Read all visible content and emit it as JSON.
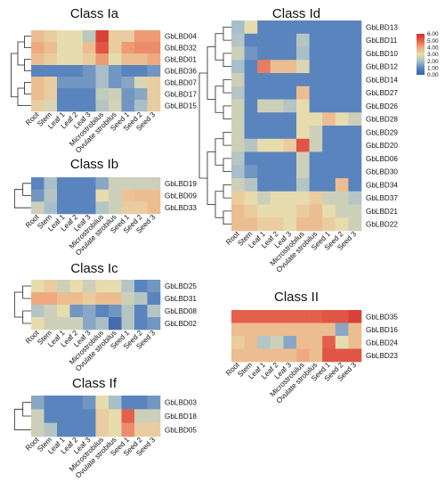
{
  "chart_data": {
    "type": "heatmap",
    "columns": [
      "Root",
      "Stem",
      "Leaf 1",
      "Leaf 2",
      "Leaf 3",
      "Microstrobilus",
      "Ovulate strobilus",
      "Seed 1",
      "Seed 2",
      "Seed 3"
    ],
    "legend": {
      "ticks": [
        "6.00",
        "5.00",
        "4.00",
        "3.00",
        "2.00",
        "1.00",
        "0.00"
      ],
      "min": 0,
      "max": 6,
      "colors": [
        "#3b62a8",
        "#5a84bd",
        "#a8bfc9",
        "#e6dcae",
        "#f0a97e",
        "#e4604c",
        "#d32a2a"
      ]
    },
    "panels": [
      {
        "title": "Class Ia",
        "rows": [
          "GbLBD04",
          "GbLBD32",
          "GbLBD01",
          "GbLBD36",
          "GbLBD07",
          "GbLBD17",
          "GbLBD15"
        ],
        "values": [
          [
            3.6,
            3.3,
            3.0,
            3.0,
            2.3,
            5.6,
            3.3,
            3.3,
            4.2,
            4.2
          ],
          [
            4.0,
            3.6,
            3.0,
            3.0,
            3.6,
            5.2,
            3.3,
            4.2,
            4.4,
            4.4
          ],
          [
            3.6,
            3.3,
            3.0,
            3.0,
            3.3,
            4.2,
            3.0,
            3.6,
            3.6,
            4.0
          ],
          [
            1.0,
            1.0,
            1.0,
            1.0,
            1.3,
            2.0,
            1.3,
            1.0,
            1.0,
            1.3
          ],
          [
            3.6,
            3.3,
            1.3,
            1.3,
            1.3,
            2.0,
            1.3,
            1.6,
            2.8,
            3.3
          ],
          [
            3.6,
            3.3,
            1.0,
            1.0,
            1.0,
            2.4,
            2.6,
            1.3,
            1.6,
            3.3
          ],
          [
            3.3,
            2.8,
            1.0,
            1.0,
            1.0,
            2.2,
            2.7,
            1.3,
            2.0,
            3.3
          ]
        ]
      },
      {
        "title": "Class Ib",
        "rows": [
          "GbLBD19",
          "GbLBD09",
          "GbLBD33"
        ],
        "values": [
          [
            1.0,
            2.0,
            1.0,
            1.0,
            1.0,
            1.6,
            2.6,
            2.6,
            2.6,
            2.6
          ],
          [
            1.3,
            2.2,
            1.0,
            1.0,
            1.0,
            3.0,
            2.6,
            3.5,
            3.6,
            3.6
          ],
          [
            2.6,
            2.0,
            1.0,
            1.0,
            1.0,
            2.2,
            2.6,
            3.3,
            3.3,
            3.6
          ]
        ]
      },
      {
        "title": "Class Ic",
        "rows": [
          "GbLBD25",
          "GbLBD31",
          "GbLBD08",
          "GbLBD02"
        ],
        "values": [
          [
            3.0,
            3.3,
            2.6,
            3.0,
            2.6,
            3.0,
            3.0,
            2.2,
            1.0,
            1.3
          ],
          [
            4.0,
            4.0,
            3.6,
            3.6,
            3.3,
            3.6,
            3.6,
            2.6,
            2.2,
            1.0
          ],
          [
            2.2,
            2.6,
            3.0,
            1.3,
            1.6,
            1.0,
            1.3,
            2.2,
            1.0,
            2.2
          ],
          [
            3.0,
            2.6,
            2.6,
            2.6,
            1.6,
            2.0,
            0.3,
            2.2,
            1.0,
            1.3
          ]
        ]
      },
      {
        "title": "Class If",
        "rows": [
          "GbLBD03",
          "GbLBD18",
          "GbLBD05"
        ],
        "values": [
          [
            1.6,
            1.0,
            1.0,
            1.0,
            1.3,
            3.0,
            2.0,
            1.0,
            1.0,
            1.3
          ],
          [
            2.6,
            1.0,
            1.0,
            1.0,
            1.0,
            3.3,
            3.0,
            5.0,
            2.6,
            2.6
          ],
          [
            2.6,
            2.2,
            1.0,
            1.0,
            1.0,
            3.3,
            3.0,
            4.4,
            3.3,
            3.3
          ]
        ]
      },
      {
        "title": "Class Id",
        "rows": [
          "GbLBD13",
          "GbLBD11",
          "GbLBD10",
          "GbLBD12",
          "GbLBD14",
          "GbLBD27",
          "GbLBD26",
          "GbLBD28",
          "GbLBD29",
          "GbLBD20",
          "GbLBD06",
          "GbLBD30",
          "GbLBD34",
          "GbLBD37",
          "GbLBD21",
          "GbLBD22"
        ],
        "values": [
          [
            2.0,
            3.0,
            1.0,
            1.0,
            1.0,
            1.0,
            1.0,
            1.0,
            1.0,
            1.0
          ],
          [
            2.2,
            1.0,
            1.0,
            1.0,
            1.0,
            2.2,
            1.0,
            1.0,
            1.0,
            1.0
          ],
          [
            2.6,
            1.3,
            1.0,
            1.0,
            1.0,
            2.0,
            1.0,
            1.0,
            1.0,
            1.0
          ],
          [
            2.0,
            1.0,
            4.6,
            3.6,
            3.6,
            2.8,
            1.0,
            1.0,
            1.0,
            1.0
          ],
          [
            2.6,
            1.0,
            1.0,
            1.0,
            1.0,
            1.0,
            1.0,
            1.0,
            1.0,
            1.0
          ],
          [
            2.2,
            1.0,
            1.0,
            1.0,
            1.0,
            3.6,
            1.0,
            1.0,
            1.0,
            1.0
          ],
          [
            2.6,
            1.0,
            2.6,
            2.6,
            2.2,
            3.0,
            1.0,
            1.0,
            1.0,
            1.0
          ],
          [
            2.6,
            1.0,
            1.0,
            1.0,
            1.0,
            3.0,
            3.0,
            3.6,
            3.0,
            2.6
          ],
          [
            2.6,
            1.0,
            1.0,
            1.0,
            1.0,
            3.0,
            2.6,
            1.0,
            1.0,
            1.0
          ],
          [
            2.6,
            2.2,
            3.0,
            3.0,
            3.3,
            5.2,
            2.6,
            1.0,
            1.0,
            1.0
          ],
          [
            2.2,
            1.0,
            1.0,
            1.0,
            1.0,
            2.6,
            1.0,
            1.0,
            1.0,
            1.0
          ],
          [
            2.0,
            1.3,
            1.0,
            1.0,
            1.0,
            2.6,
            1.0,
            1.0,
            1.0,
            1.0
          ],
          [
            2.6,
            2.2,
            1.0,
            1.0,
            1.0,
            2.2,
            1.0,
            1.0,
            3.6,
            1.0
          ],
          [
            3.3,
            3.0,
            2.6,
            3.0,
            3.0,
            3.0,
            3.3,
            2.6,
            2.6,
            2.2
          ],
          [
            3.6,
            3.3,
            3.0,
            3.0,
            3.0,
            3.3,
            3.6,
            3.0,
            2.6,
            2.6
          ],
          [
            3.6,
            3.6,
            3.3,
            3.3,
            3.0,
            3.6,
            3.6,
            3.3,
            3.0,
            2.6
          ]
        ]
      },
      {
        "title": "Class II",
        "rows": [
          "GbLBD35",
          "GbLBD16",
          "GbLBD24",
          "GbLBD23"
        ],
        "values": [
          [
            5.0,
            5.0,
            5.0,
            5.0,
            5.0,
            5.0,
            5.0,
            5.2,
            5.2,
            5.6
          ],
          [
            3.6,
            3.6,
            3.6,
            3.6,
            3.6,
            3.6,
            3.6,
            3.6,
            1.6,
            3.6
          ],
          [
            3.3,
            3.6,
            2.2,
            2.6,
            1.6,
            3.6,
            3.6,
            5.0,
            3.0,
            3.6
          ],
          [
            3.6,
            3.6,
            3.6,
            3.6,
            3.6,
            4.0,
            3.6,
            5.2,
            5.2,
            5.2
          ]
        ]
      }
    ]
  }
}
